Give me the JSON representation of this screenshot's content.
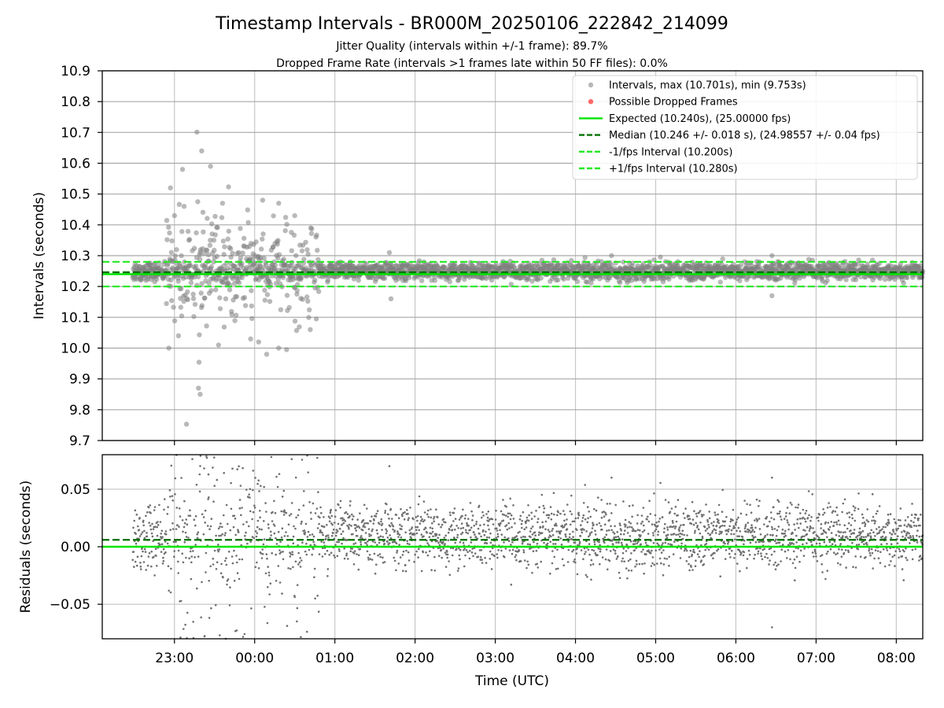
{
  "chart_data": {
    "type": "scatter",
    "title": "Timestamp Intervals - BR000M_20250106_222842_214099",
    "subtitles": [
      "Jitter Quality (intervals within +/-1 frame): 89.7%",
      "Dropped Frame Rate (intervals >1 frames late within 50 FF files): 0.0%"
    ],
    "xlabel": "Time (UTC)",
    "x_ticks": [
      "23:00",
      "00:00",
      "01:00",
      "02:00",
      "03:00",
      "04:00",
      "05:00",
      "06:00",
      "07:00",
      "08:00"
    ],
    "x_range_hours": [
      22.1,
      32.33
    ],
    "data_start_hour": 22.48,
    "data_end_hour": 32.33,
    "grid": true,
    "legend_position": "upper right",
    "colors": {
      "points": "#808080",
      "dropped": "#ff4444",
      "expected": "#00e600",
      "median": "#007000",
      "interval_bounds": "#22e822"
    },
    "top_panel": {
      "ylabel": "Intervals (seconds)",
      "ylim": [
        9.7,
        10.9
      ],
      "y_ticks": [
        "9.7",
        "9.8",
        "9.9",
        "10.0",
        "10.1",
        "10.2",
        "10.3",
        "10.4",
        "10.5",
        "10.6",
        "10.7",
        "10.8",
        "10.9"
      ],
      "expected": 10.24,
      "median": 10.246,
      "lower_bound": 10.2,
      "upper_bound": 10.28,
      "max_interval": 10.701,
      "min_interval": 9.753,
      "outliers": [
        {
          "x": 22.93,
          "y": 10.0
        },
        {
          "x": 22.95,
          "y": 10.52
        },
        {
          "x": 23.0,
          "y": 10.43
        },
        {
          "x": 23.05,
          "y": 10.04
        },
        {
          "x": 23.1,
          "y": 10.58
        },
        {
          "x": 23.12,
          "y": 10.46
        },
        {
          "x": 23.15,
          "y": 9.753
        },
        {
          "x": 23.28,
          "y": 10.701
        },
        {
          "x": 23.3,
          "y": 9.87
        },
        {
          "x": 23.32,
          "y": 9.85
        },
        {
          "x": 23.34,
          "y": 10.64
        },
        {
          "x": 23.45,
          "y": 10.59
        },
        {
          "x": 23.6,
          "y": 10.47
        },
        {
          "x": 23.55,
          "y": 10.01
        },
        {
          "x": 23.95,
          "y": 10.03
        },
        {
          "x": 24.05,
          "y": 10.02
        },
        {
          "x": 24.1,
          "y": 10.48
        },
        {
          "x": 24.15,
          "y": 9.98
        },
        {
          "x": 24.3,
          "y": 10.0
        },
        {
          "x": 24.3,
          "y": 10.47
        },
        {
          "x": 24.5,
          "y": 10.43
        },
        {
          "x": 24.7,
          "y": 10.39
        },
        {
          "x": 25.68,
          "y": 10.31
        },
        {
          "x": 25.7,
          "y": 10.16
        },
        {
          "x": 28.45,
          "y": 10.3
        },
        {
          "x": 30.45,
          "y": 10.17
        },
        {
          "x": 30.45,
          "y": 10.3
        }
      ]
    },
    "bottom_panel": {
      "ylabel": "Residuals (seconds)",
      "ylim": [
        -0.08,
        0.08
      ],
      "y_ticks": [
        "−0.05",
        "0.00",
        "0.05"
      ],
      "y_tick_values": [
        -0.05,
        0.0,
        0.05
      ],
      "expected": 0.0,
      "median": 0.006
    },
    "legend": [
      {
        "label": "Intervals, max (10.701s), min (9.753s)",
        "kind": "marker",
        "color": "#a0a0a0"
      },
      {
        "label": "Possible Dropped Frames",
        "kind": "marker",
        "color": "#ff4444"
      },
      {
        "label": "Expected (10.240s), (25.00000 fps)",
        "kind": "solid",
        "color": "#00e600"
      },
      {
        "label": "Median (10.246 +/- 0.018 s), (24.98557 +/- 0.04 fps)",
        "kind": "dashed",
        "color": "#007000"
      },
      {
        "label": "-1/fps Interval (10.200s)",
        "kind": "dashed",
        "color": "#22e822"
      },
      {
        "label": "+1/fps Interval (10.280s)",
        "kind": "dashed",
        "color": "#22e822"
      }
    ]
  }
}
